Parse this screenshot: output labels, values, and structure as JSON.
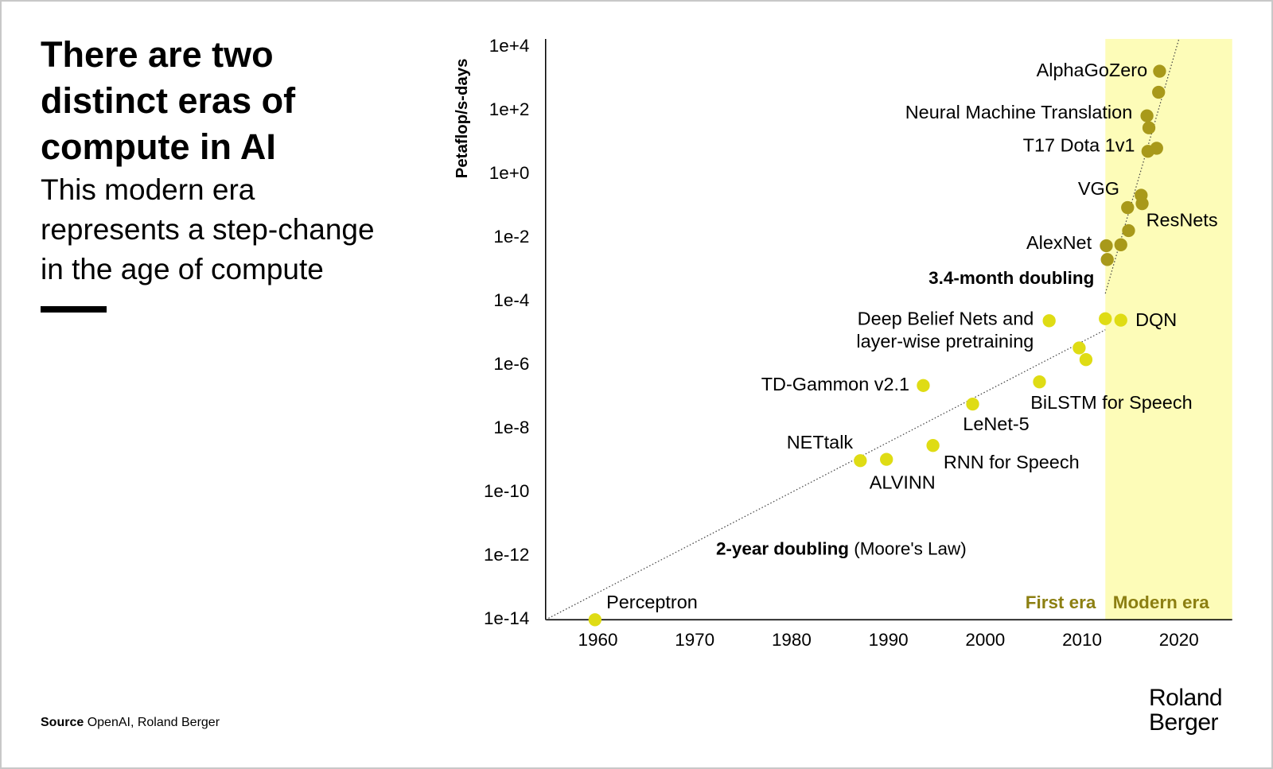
{
  "header": {
    "title_lines": [
      "There are two",
      "distinct eras of",
      "compute in AI"
    ],
    "subtitle_lines": [
      "This modern era",
      "represents a step-change",
      "in the age of compute"
    ]
  },
  "source": {
    "label": "Source",
    "text": "OpenAI, Roland Berger"
  },
  "logo": [
    "Roland",
    "Berger"
  ],
  "chart_data": {
    "type": "scatter",
    "y_label": "Petaflop/s-days",
    "y_log": true,
    "grid": false,
    "xlim": [
      1954.6,
      2025.5
    ],
    "xticks": [
      1960,
      1970,
      1980,
      1990,
      2000,
      2010,
      2020
    ],
    "ylim": [
      1e-14,
      18000
    ],
    "yticks": [
      {
        "value": 10000.0,
        "label": "1e+4"
      },
      {
        "value": 100.0,
        "label": "1e+2"
      },
      {
        "value": 1,
        "label": "1e+0"
      },
      {
        "value": 0.01,
        "label": "1e-2"
      },
      {
        "value": 0.0001,
        "label": "1e-4"
      },
      {
        "value": 1e-06,
        "label": "1e-6"
      },
      {
        "value": 1e-08,
        "label": "1e-8"
      },
      {
        "value": 1e-10,
        "label": "1e-10"
      },
      {
        "value": 1e-12,
        "label": "1e-12"
      },
      {
        "value": 1e-14,
        "label": "1e-14"
      }
    ],
    "shade_from": 2012.4,
    "shade_color": "#fdfcb8",
    "era_label_color": "#8c7f12",
    "series": [
      {
        "name": "First era",
        "color": "#dfdc14",
        "x": [
          1959.7,
          1987.1,
          1989.8,
          1994.6,
          1998.7,
          1993.6,
          2005.6,
          2006.6,
          2009.7,
          2010.4,
          2012.4,
          2014.0
        ],
        "values": [
          1e-14,
          1e-09,
          1.1e-09,
          3e-09,
          6e-08,
          2.3e-07,
          3e-07,
          2.5e-05,
          3.5e-06,
          1.5e-06,
          2.9e-05,
          2.6e-05
        ],
        "labels": [
          "Perceptron",
          "NETtalk",
          "ALVINN",
          "RNN for Speech",
          "LeNet-5",
          "TD-Gammon v2.1",
          "BiLSTM for Speech",
          [
            "Deep Belief Nets and",
            "layer-wise pretraining"
          ],
          null,
          null,
          null,
          "DQN"
        ]
      },
      {
        "name": "Modern era",
        "color": "#a8991a",
        "x": [
          2012.5,
          2012.6,
          2014.0,
          2014.8,
          2014.7,
          2016.1,
          2016.2,
          2016.8,
          2017.7,
          2016.9,
          2016.7,
          2017.9,
          2018.0
        ],
        "values": [
          0.0057,
          0.0021,
          0.0061,
          0.017,
          0.09,
          0.22,
          0.12,
          5.3,
          6.6,
          29,
          69,
          380,
          1740
        ],
        "labels": [
          "AlexNet",
          null,
          null,
          null,
          "VGG",
          null,
          "ResNets",
          "T17 Dota 1v1",
          null,
          null,
          "Neural Machine Translation",
          null,
          "AlphaGoZero"
        ]
      }
    ],
    "trends": [
      {
        "label": "2-year doubling",
        "note": "(Moore's Law)",
        "x": [
          1954.6,
          2012.4
        ],
        "values": [
          1e-14,
          1.3e-05
        ]
      },
      {
        "label": "3.4-month doubling",
        "x": [
          2012.4,
          2020.0
        ],
        "values": [
          0.00018,
          18000
        ]
      }
    ]
  }
}
